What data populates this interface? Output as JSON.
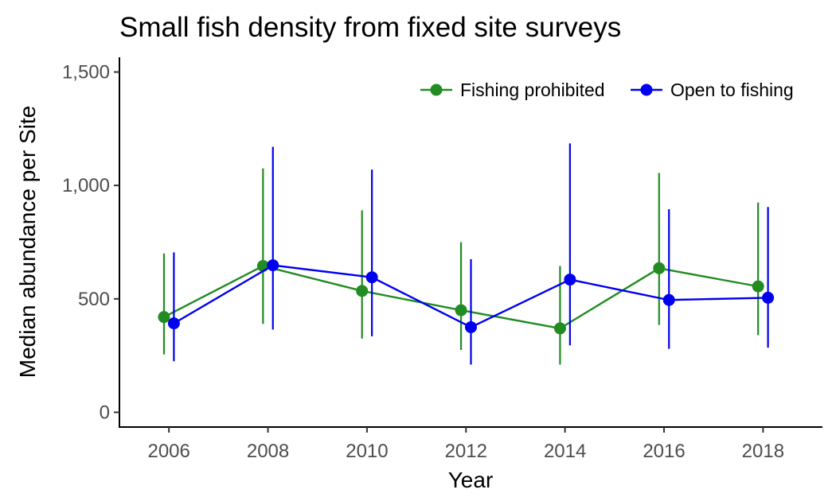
{
  "chart_data": {
    "type": "line",
    "title": "Small fish density from fixed site surveys",
    "xlabel": "Year",
    "ylabel": "Median abundance per Site",
    "xlim": [
      2005.0,
      2019.2
    ],
    "ylim": [
      -65,
      1565
    ],
    "xticks": [
      2006,
      2008,
      2010,
      2012,
      2014,
      2016,
      2018
    ],
    "xtick_labels": [
      "2006",
      "2008",
      "2010",
      "2012",
      "2014",
      "2016",
      "2018"
    ],
    "yticks": [
      0,
      500,
      1000,
      1500
    ],
    "ytick_labels": [
      "0",
      "500",
      "1,000",
      "1,500"
    ],
    "legend_position": "top-right",
    "error_bars": true,
    "series": [
      {
        "name": "Fishing prohibited",
        "color": "#228b22",
        "dodge": -0.1,
        "x": [
          2006,
          2008,
          2010,
          2012,
          2014,
          2016,
          2018
        ],
        "y": [
          420,
          645,
          535,
          450,
          370,
          635,
          555
        ],
        "lower": [
          255,
          390,
          325,
          275,
          210,
          385,
          340
        ],
        "upper": [
          700,
          1075,
          890,
          750,
          645,
          1055,
          925
        ]
      },
      {
        "name": "Open to fishing",
        "color": "#0000ee",
        "dodge": 0.1,
        "x": [
          2006,
          2008,
          2010,
          2012,
          2014,
          2016,
          2018
        ],
        "y": [
          392,
          648,
          595,
          375,
          585,
          495,
          505
        ],
        "lower": [
          225,
          365,
          335,
          210,
          295,
          280,
          285
        ],
        "upper": [
          705,
          1170,
          1070,
          675,
          1185,
          895,
          905
        ]
      }
    ]
  }
}
